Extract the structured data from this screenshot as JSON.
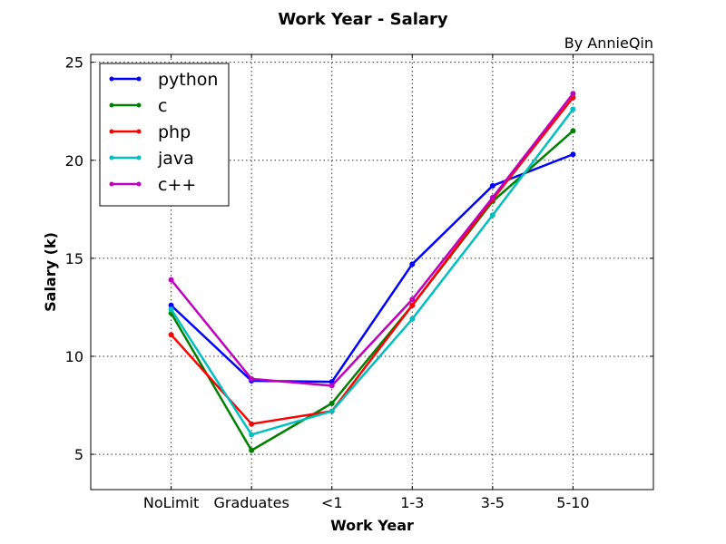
{
  "chart_data": {
    "type": "line",
    "title": "Work Year - Salary",
    "subtitle": "By AnnieQin",
    "xlabel": "Work Year",
    "ylabel": "Salary (k)",
    "categories": [
      "NoLimit",
      "Graduates",
      "<1",
      "1-3",
      "3-5",
      "5-10"
    ],
    "yticks": [
      5,
      10,
      15,
      20,
      25
    ],
    "ylim": [
      3.2,
      25.4
    ],
    "grid": true,
    "legend_position": "top-left",
    "series": [
      {
        "name": "python",
        "color": "#0000ff",
        "values": [
          12.6,
          8.75,
          8.7,
          14.7,
          18.7,
          20.3
        ]
      },
      {
        "name": "c",
        "color": "#008000",
        "values": [
          12.2,
          5.2,
          7.6,
          12.6,
          17.9,
          21.5
        ]
      },
      {
        "name": "php",
        "color": "#ff0000",
        "values": [
          11.1,
          6.55,
          7.2,
          12.6,
          18.0,
          23.2
        ]
      },
      {
        "name": "java",
        "color": "#00bfbf",
        "values": [
          12.4,
          6.0,
          7.2,
          11.9,
          17.2,
          22.6
        ]
      },
      {
        "name": "c++",
        "color": "#bf00bf",
        "values": [
          13.9,
          8.85,
          8.5,
          12.9,
          18.1,
          23.4
        ]
      }
    ]
  }
}
